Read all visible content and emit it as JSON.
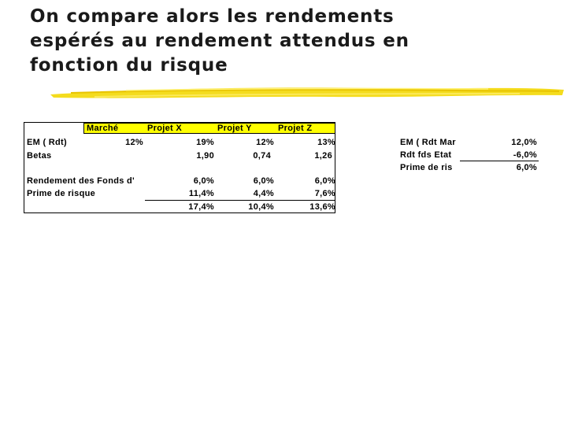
{
  "title": {
    "lines": [
      "On compare alors  les rendements",
      "espérés au rendement attendus en",
      "fonction du risque"
    ]
  },
  "left_table": {
    "header": [
      "Marché",
      "Projet X",
      "Projet Y",
      "Projet Z"
    ],
    "rows": {
      "em": {
        "label": "EM ( Rdt)",
        "values": [
          "12%",
          "19%",
          "12%",
          "13%"
        ]
      },
      "betas": {
        "label": "Betas",
        "values": [
          "1,90",
          "0,74",
          "1,26"
        ]
      },
      "rendement": {
        "label": "Rendement des Fonds d'",
        "values": [
          "6,0%",
          "6,0%",
          "6,0%"
        ]
      },
      "prime": {
        "label": "Prime de risque",
        "values": [
          "11,4%",
          "4,4%",
          "7,6%"
        ]
      },
      "total": {
        "values": [
          "17,4%",
          "10,4%",
          "13,6%"
        ]
      }
    }
  },
  "right_table": {
    "rows": [
      {
        "label": "EM ( Rdt Mar",
        "value": "12,0%"
      },
      {
        "label": "Rdt fds Etat",
        "value": "-6,0%"
      },
      {
        "label": "Prime de ris",
        "value": "6,0%"
      }
    ]
  },
  "colors": {
    "header_band": "#ffff00",
    "underline": "#f2d600"
  }
}
